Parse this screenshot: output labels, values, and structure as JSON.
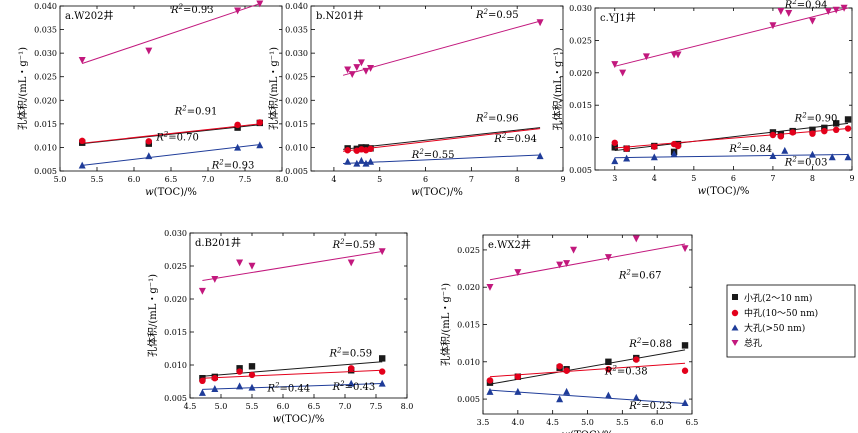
{
  "legend": {
    "items": [
      {
        "key": "small",
        "label": "小孔(2～10 nm)"
      },
      {
        "key": "medium",
        "label": "中孔(10～50 nm)"
      },
      {
        "key": "large",
        "label": "大孔(>50 nm)"
      },
      {
        "key": "total",
        "label": "总孔"
      }
    ]
  },
  "series_styles": {
    "small": {
      "color": "#1a1a1a",
      "marker": "square"
    },
    "medium": {
      "color": "#e3001b",
      "marker": "circle"
    },
    "large": {
      "color": "#1f3c99",
      "marker": "triangle-up"
    },
    "total": {
      "color": "#c2187d",
      "marker": "triangle-down"
    }
  },
  "chart_data": [
    {
      "type": "scatter",
      "title": "a.W202井",
      "xlabel_prefix": "w",
      "xlabel": "(TOC)/%",
      "ylabel": "孔体积/(mL・g⁻¹)",
      "xlim": [
        5.0,
        8.0
      ],
      "ylim": [
        0.005,
        0.04
      ],
      "xticks": [
        "5.0",
        "5.5",
        "6.0",
        "6.5",
        "7.0",
        "7.5",
        "8.0"
      ],
      "yticks": [
        "0.005",
        "0.010",
        "0.015",
        "0.020",
        "0.025",
        "0.030",
        "0.035",
        "0.040"
      ],
      "series": [
        {
          "key": "small",
          "x": [
            5.3,
            6.2,
            7.4,
            7.7
          ],
          "y": [
            0.011,
            0.0108,
            0.0142,
            0.0152
          ],
          "fit": [
            [
              5.3,
              0.0108
            ],
            [
              7.7,
              0.0148
            ]
          ],
          "r2": "0.91"
        },
        {
          "key": "medium",
          "x": [
            5.3,
            6.2,
            7.4,
            7.7
          ],
          "y": [
            0.0114,
            0.0113,
            0.0148,
            0.0153
          ],
          "fit": [
            [
              5.3,
              0.0109
            ],
            [
              7.7,
              0.015
            ]
          ],
          "r2": ""
        },
        {
          "key": "large",
          "x": [
            5.3,
            6.2,
            7.4,
            7.7
          ],
          "y": [
            0.0062,
            0.0082,
            0.01,
            0.0105
          ],
          "fit": [
            [
              5.3,
              0.0062
            ],
            [
              7.7,
              0.0106
            ]
          ],
          "r2": "0.93"
        },
        {
          "key": "total",
          "x": [
            5.3,
            6.2,
            7.4,
            7.7
          ],
          "y": [
            0.0285,
            0.0305,
            0.039,
            0.0405
          ],
          "fit": [
            [
              5.3,
              0.0278
            ],
            [
              7.7,
              0.0405
            ]
          ],
          "r2": "0.93"
        }
      ],
      "annotations": [
        {
          "text": "R",
          "sup": "2",
          "val": "=0.93",
          "x": 6.5,
          "y": 0.0385
        },
        {
          "text": "R",
          "sup": "2",
          "val": "=0.91",
          "x": 6.55,
          "y": 0.017
        },
        {
          "text": "R",
          "sup": "2",
          "val": "=0.70",
          "x": 6.3,
          "y": 0.0115
        },
        {
          "text": "R",
          "sup": "2",
          "val": "=0.93",
          "x": 7.05,
          "y": 0.0055
        }
      ]
    },
    {
      "type": "scatter",
      "title": "b.N201井",
      "xlabel_prefix": "w",
      "xlabel": "(TOC)/%",
      "ylabel": "孔体积/(mL・g⁻¹)",
      "xlim": [
        3.5,
        9.0
      ],
      "ylim": [
        0.005,
        0.04
      ],
      "xticks": [
        "4",
        "5",
        "6",
        "7",
        "8",
        "9"
      ],
      "yticks": [
        "0.005",
        "0.010",
        "0.015",
        "0.020",
        "0.025",
        "0.030",
        "0.035",
        "0.040"
      ],
      "series": [
        {
          "key": "small",
          "x": [
            4.3,
            4.5,
            4.6,
            4.7,
            4.8
          ],
          "y": [
            0.0098,
            0.0097,
            0.01,
            0.01,
            0.0098
          ],
          "fit": [
            [
              4.2,
              0.0096
            ],
            [
              8.5,
              0.0142
            ]
          ],
          "r2": "0.96"
        },
        {
          "key": "medium",
          "x": [
            4.3,
            4.5,
            4.6,
            4.7,
            4.8
          ],
          "y": [
            0.0094,
            0.0093,
            0.0096,
            0.0094,
            0.0097
          ],
          "fit": [
            [
              4.2,
              0.0092
            ],
            [
              8.5,
              0.014
            ]
          ],
          "r2": "0.94"
        },
        {
          "key": "large",
          "x": [
            4.3,
            4.5,
            4.6,
            4.7,
            4.8,
            8.5
          ],
          "y": [
            0.007,
            0.0066,
            0.0072,
            0.0066,
            0.007,
            0.0082
          ],
          "fit": [
            [
              4.2,
              0.0066
            ],
            [
              8.5,
              0.0084
            ]
          ],
          "r2": "0.55"
        },
        {
          "key": "total",
          "x": [
            4.3,
            4.4,
            4.5,
            4.6,
            4.7,
            4.8,
            8.5
          ],
          "y": [
            0.0265,
            0.0255,
            0.027,
            0.028,
            0.0262,
            0.0268,
            0.0365
          ],
          "fit": [
            [
              4.2,
              0.0253
            ],
            [
              8.5,
              0.0368
            ]
          ],
          "r2": "0.95"
        }
      ],
      "annotations": [
        {
          "text": "R",
          "sup": "2",
          "val": "=0.95",
          "x": 7.1,
          "y": 0.0375
        },
        {
          "text": "R",
          "sup": "2",
          "val": "=0.96",
          "x": 7.1,
          "y": 0.0155
        },
        {
          "text": "R",
          "sup": "2",
          "val": "=0.94",
          "x": 7.5,
          "y": 0.0112
        },
        {
          "text": "R",
          "sup": "2",
          "val": "=0.55",
          "x": 5.7,
          "y": 0.0078
        }
      ]
    },
    {
      "type": "scatter",
      "title": "c.YJ1井",
      "xlabel_prefix": "w",
      "xlabel": "(TOC)/%",
      "ylabel": "孔体积/(mL・g⁻¹)",
      "xlim": [
        2.5,
        9.0
      ],
      "ylim": [
        0.005,
        0.03
      ],
      "xticks": [
        "3",
        "4",
        "5",
        "6",
        "7",
        "8",
        "9"
      ],
      "yticks": [
        "0.005",
        "0.010",
        "0.015",
        "0.020",
        "0.025",
        "0.030"
      ],
      "series": [
        {
          "key": "small",
          "x": [
            3.0,
            3.3,
            4.0,
            4.5,
            4.6,
            7.0,
            7.2,
            7.5,
            8.0,
            8.3,
            8.6,
            8.9
          ],
          "y": [
            0.0085,
            0.0083,
            0.0087,
            0.0078,
            0.009,
            0.0108,
            0.0105,
            0.011,
            0.0112,
            0.0115,
            0.0122,
            0.0128
          ],
          "fit": [
            [
              3.0,
              0.008
            ],
            [
              8.9,
              0.0122
            ]
          ],
          "r2": "0.90"
        },
        {
          "key": "medium",
          "x": [
            3.0,
            3.3,
            4.0,
            4.5,
            4.6,
            7.0,
            7.2,
            7.5,
            8.0,
            8.3,
            8.6,
            8.9
          ],
          "y": [
            0.0092,
            0.0083,
            0.0086,
            0.009,
            0.0087,
            0.0104,
            0.0102,
            0.0108,
            0.0106,
            0.011,
            0.0112,
            0.0114
          ],
          "fit": [
            [
              3.0,
              0.0084
            ],
            [
              8.9,
              0.0114
            ]
          ],
          "r2": "0.84"
        },
        {
          "key": "large",
          "x": [
            3.0,
            3.3,
            4.0,
            4.5,
            7.0,
            7.3,
            8.0,
            8.5,
            8.9
          ],
          "y": [
            0.0064,
            0.0068,
            0.007,
            0.0075,
            0.0072,
            0.008,
            0.0074,
            0.007,
            0.007
          ],
          "fit": [
            [
              3.0,
              0.0069
            ],
            [
              8.9,
              0.0074
            ]
          ],
          "r2": "0.03"
        },
        {
          "key": "total",
          "x": [
            3.0,
            3.2,
            3.8,
            4.5,
            4.6,
            7.0,
            7.2,
            7.4,
            8.0,
            8.4,
            8.6,
            8.8
          ],
          "y": [
            0.0213,
            0.02,
            0.0225,
            0.0228,
            0.0228,
            0.0273,
            0.0295,
            0.0292,
            0.028,
            0.0295,
            0.0297,
            0.03
          ],
          "fit": [
            [
              3.0,
              0.021
            ],
            [
              8.9,
              0.03
            ]
          ],
          "r2": "0.94"
        }
      ],
      "annotations": [
        {
          "text": "R",
          "sup": "2",
          "val": "=0.94",
          "x": 7.3,
          "y": 0.03
        },
        {
          "text": "R",
          "sup": "2",
          "val": "=0.90",
          "x": 7.55,
          "y": 0.0125
        },
        {
          "text": "R",
          "sup": "2",
          "val": "=0.84",
          "x": 5.9,
          "y": 0.0078
        },
        {
          "text": "R",
          "sup": "2",
          "val": "=0.03",
          "x": 7.3,
          "y": 0.0057
        }
      ]
    },
    {
      "type": "scatter",
      "title": "d.B201井",
      "xlabel_prefix": "w",
      "xlabel": "(TOC)/%",
      "ylabel": "孔体积/(mL・g⁻¹)",
      "xlim": [
        4.5,
        8.0
      ],
      "ylim": [
        0.005,
        0.03
      ],
      "xticks": [
        "4.5",
        "5.0",
        "5.5",
        "6.0",
        "6.5",
        "7.0",
        "7.5",
        "8.0"
      ],
      "yticks": [
        "0.005",
        "0.010",
        "0.015",
        "0.020",
        "0.025",
        "0.030"
      ],
      "series": [
        {
          "key": "small",
          "x": [
            4.7,
            4.9,
            5.3,
            5.5,
            7.1,
            7.6
          ],
          "y": [
            0.008,
            0.0082,
            0.0095,
            0.0098,
            0.0092,
            0.011
          ],
          "fit": [
            [
              4.7,
              0.0083
            ],
            [
              7.6,
              0.0105
            ]
          ],
          "r2": "0.59"
        },
        {
          "key": "medium",
          "x": [
            4.7,
            4.9,
            5.3,
            5.5,
            7.1,
            7.6
          ],
          "y": [
            0.0076,
            0.008,
            0.009,
            0.0085,
            0.0095,
            0.009
          ],
          "fit": [
            [
              4.7,
              0.008
            ],
            [
              7.6,
              0.0092
            ]
          ],
          "r2": "0.43"
        },
        {
          "key": "large",
          "x": [
            4.7,
            4.9,
            5.3,
            5.5,
            7.1,
            7.6
          ],
          "y": [
            0.0058,
            0.0064,
            0.0068,
            0.0066,
            0.0072,
            0.0072
          ],
          "fit": [
            [
              4.7,
              0.0063
            ],
            [
              7.6,
              0.0072
            ]
          ],
          "r2": "0.44"
        },
        {
          "key": "total",
          "x": [
            4.7,
            4.9,
            5.3,
            5.5,
            7.1,
            7.6
          ],
          "y": [
            0.0212,
            0.023,
            0.0255,
            0.025,
            0.0255,
            0.0272
          ],
          "fit": [
            [
              4.7,
              0.0228
            ],
            [
              7.6,
              0.0272
            ]
          ],
          "r2": "0.59"
        }
      ],
      "annotations": [
        {
          "text": "R",
          "sup": "2",
          "val": "=0.59",
          "x": 6.8,
          "y": 0.0277
        },
        {
          "text": "R",
          "sup": "2",
          "val": "=0.59",
          "x": 6.75,
          "y": 0.0113
        },
        {
          "text": "R",
          "sup": "2",
          "val": "=0.43",
          "x": 6.8,
          "y": 0.0062
        },
        {
          "text": "R",
          "sup": "2",
          "val": "=0.44",
          "x": 5.75,
          "y": 0.006
        }
      ]
    },
    {
      "type": "scatter",
      "title": "e.WX2井",
      "xlabel_prefix": "w",
      "xlabel": "(TOC)/%",
      "ylabel": "孔体积/(mL・g⁻¹)",
      "xlim": [
        3.5,
        6.5
      ],
      "ylim": [
        0.003,
        0.027
      ],
      "xticks": [
        "3.5",
        "4.0",
        "4.5",
        "5.0",
        "5.5",
        "6.0",
        "6.5"
      ],
      "yticks": [
        "0.005",
        "0.010",
        "0.015",
        "0.020",
        "0.025"
      ],
      "series": [
        {
          "key": "small",
          "x": [
            3.6,
            4.0,
            4.6,
            4.7,
            5.3,
            5.7,
            6.4
          ],
          "y": [
            0.0072,
            0.008,
            0.0092,
            0.009,
            0.01,
            0.0105,
            0.0122
          ],
          "fit": [
            [
              3.6,
              0.007
            ],
            [
              6.4,
              0.0116
            ]
          ],
          "r2": "0.88"
        },
        {
          "key": "medium",
          "x": [
            3.6,
            4.0,
            4.6,
            4.7,
            5.3,
            5.7,
            6.4
          ],
          "y": [
            0.0075,
            0.008,
            0.0094,
            0.0088,
            0.009,
            0.0103,
            0.0088
          ],
          "fit": [
            [
              3.6,
              0.008
            ],
            [
              6.4,
              0.0098
            ]
          ],
          "r2": "0.38"
        },
        {
          "key": "large",
          "x": [
            3.6,
            4.0,
            4.6,
            4.7,
            5.3,
            5.7,
            6.4
          ],
          "y": [
            0.006,
            0.006,
            0.005,
            0.006,
            0.0055,
            0.0052,
            0.0045
          ],
          "fit": [
            [
              3.6,
              0.0062
            ],
            [
              6.4,
              0.0044
            ]
          ],
          "r2": "0.23"
        },
        {
          "key": "total",
          "x": [
            3.6,
            4.0,
            4.6,
            4.7,
            4.8,
            5.3,
            5.7,
            6.4
          ],
          "y": [
            0.02,
            0.022,
            0.023,
            0.0232,
            0.025,
            0.024,
            0.0265,
            0.0252
          ],
          "fit": [
            [
              3.6,
              0.021
            ],
            [
              6.4,
              0.0258
            ]
          ],
          "r2": "0.67"
        }
      ],
      "annotations": [
        {
          "text": "R",
          "sup": "2",
          "val": "=0.67",
          "x": 5.45,
          "y": 0.0212
        },
        {
          "text": "R",
          "sup": "2",
          "val": "=0.88",
          "x": 5.6,
          "y": 0.012
        },
        {
          "text": "R",
          "sup": "2",
          "val": "=0.38",
          "x": 5.25,
          "y": 0.0083
        },
        {
          "text": "R",
          "sup": "2",
          "val": "=0.23",
          "x": 5.6,
          "y": 0.0037
        }
      ]
    }
  ]
}
